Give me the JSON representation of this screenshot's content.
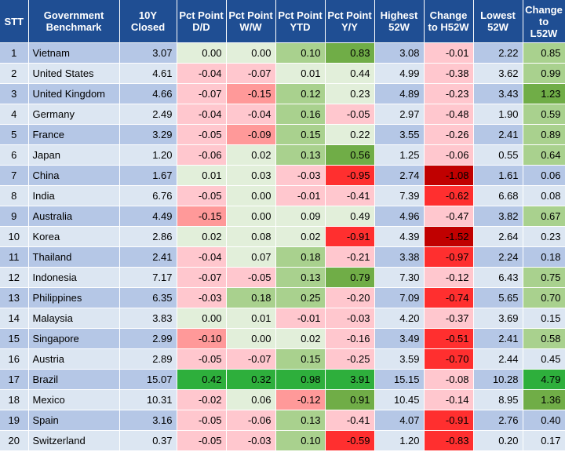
{
  "columns": [
    "STT",
    "Government Benchmark",
    "10Y Closed",
    "Pct Point D/D",
    "Pct Point W/W",
    "Pct Point YTD",
    "Pct Point Y/Y",
    "Highest 52W",
    "Change to H52W",
    "Lowest 52W",
    "Change to L52W"
  ],
  "rows": [
    {
      "stt": "1",
      "name": "Vietnam",
      "closed": "3.07",
      "dd": "0.00",
      "ww": "0.00",
      "ytd": "0.10",
      "yy": "0.83",
      "h52": "3.08",
      "ch52": "-0.01",
      "l52": "2.22",
      "cl52": "0.85"
    },
    {
      "stt": "2",
      "name": "United States",
      "closed": "4.61",
      "dd": "-0.04",
      "ww": "-0.07",
      "ytd": "0.01",
      "yy": "0.44",
      "h52": "4.99",
      "ch52": "-0.38",
      "l52": "3.62",
      "cl52": "0.99"
    },
    {
      "stt": "3",
      "name": "United Kingdom",
      "closed": "4.66",
      "dd": "-0.07",
      "ww": "-0.15",
      "ytd": "0.12",
      "yy": "0.23",
      "h52": "4.89",
      "ch52": "-0.23",
      "l52": "3.43",
      "cl52": "1.23"
    },
    {
      "stt": "4",
      "name": "Germany",
      "closed": "2.49",
      "dd": "-0.04",
      "ww": "-0.04",
      "ytd": "0.16",
      "yy": "-0.05",
      "h52": "2.97",
      "ch52": "-0.48",
      "l52": "1.90",
      "cl52": "0.59"
    },
    {
      "stt": "5",
      "name": "France",
      "closed": "3.29",
      "dd": "-0.05",
      "ww": "-0.09",
      "ytd": "0.15",
      "yy": "0.22",
      "h52": "3.55",
      "ch52": "-0.26",
      "l52": "2.41",
      "cl52": "0.89"
    },
    {
      "stt": "6",
      "name": "Japan",
      "closed": "1.20",
      "dd": "-0.06",
      "ww": "0.02",
      "ytd": "0.13",
      "yy": "0.56",
      "h52": "1.25",
      "ch52": "-0.06",
      "l52": "0.55",
      "cl52": "0.64"
    },
    {
      "stt": "7",
      "name": "China",
      "closed": "1.67",
      "dd": "0.01",
      "ww": "0.03",
      "ytd": "-0.03",
      "yy": "-0.95",
      "h52": "2.74",
      "ch52": "-1.08",
      "l52": "1.61",
      "cl52": "0.06"
    },
    {
      "stt": "8",
      "name": "India",
      "closed": "6.76",
      "dd": "-0.05",
      "ww": "0.00",
      "ytd": "-0.01",
      "yy": "-0.41",
      "h52": "7.39",
      "ch52": "-0.62",
      "l52": "6.68",
      "cl52": "0.08"
    },
    {
      "stt": "9",
      "name": "Australia",
      "closed": "4.49",
      "dd": "-0.15",
      "ww": "0.00",
      "ytd": "0.09",
      "yy": "0.49",
      "h52": "4.96",
      "ch52": "-0.47",
      "l52": "3.82",
      "cl52": "0.67"
    },
    {
      "stt": "10",
      "name": "Korea",
      "closed": "2.86",
      "dd": "0.02",
      "ww": "0.08",
      "ytd": "0.02",
      "yy": "-0.91",
      "h52": "4.39",
      "ch52": "-1.52",
      "l52": "2.64",
      "cl52": "0.23"
    },
    {
      "stt": "11",
      "name": "Thailand",
      "closed": "2.41",
      "dd": "-0.04",
      "ww": "0.07",
      "ytd": "0.18",
      "yy": "-0.21",
      "h52": "3.38",
      "ch52": "-0.97",
      "l52": "2.24",
      "cl52": "0.18"
    },
    {
      "stt": "12",
      "name": "Indonesia",
      "closed": "7.17",
      "dd": "-0.07",
      "ww": "-0.05",
      "ytd": "0.13",
      "yy": "0.79",
      "h52": "7.30",
      "ch52": "-0.12",
      "l52": "6.43",
      "cl52": "0.75"
    },
    {
      "stt": "13",
      "name": "Philippines",
      "closed": "6.35",
      "dd": "-0.03",
      "ww": "0.18",
      "ytd": "0.25",
      "yy": "-0.20",
      "h52": "7.09",
      "ch52": "-0.74",
      "l52": "5.65",
      "cl52": "0.70"
    },
    {
      "stt": "14",
      "name": "Malaysia",
      "closed": "3.83",
      "dd": "0.00",
      "ww": "0.01",
      "ytd": "-0.01",
      "yy": "-0.03",
      "h52": "4.20",
      "ch52": "-0.37",
      "l52": "3.69",
      "cl52": "0.15"
    },
    {
      "stt": "15",
      "name": "Singapore",
      "closed": "2.99",
      "dd": "-0.10",
      "ww": "0.00",
      "ytd": "0.02",
      "yy": "-0.16",
      "h52": "3.49",
      "ch52": "-0.51",
      "l52": "2.41",
      "cl52": "0.58"
    },
    {
      "stt": "16",
      "name": "Austria",
      "closed": "2.89",
      "dd": "-0.05",
      "ww": "-0.07",
      "ytd": "0.15",
      "yy": "-0.25",
      "h52": "3.59",
      "ch52": "-0.70",
      "l52": "2.44",
      "cl52": "0.45"
    },
    {
      "stt": "17",
      "name": "Brazil",
      "closed": "15.07",
      "dd": "0.42",
      "ww": "0.32",
      "ytd": "0.98",
      "yy": "3.91",
      "h52": "15.15",
      "ch52": "-0.08",
      "l52": "10.28",
      "cl52": "4.79"
    },
    {
      "stt": "18",
      "name": "Mexico",
      "closed": "10.31",
      "dd": "-0.02",
      "ww": "0.06",
      "ytd": "-0.12",
      "yy": "0.91",
      "h52": "10.45",
      "ch52": "-0.14",
      "l52": "8.95",
      "cl52": "1.36"
    },
    {
      "stt": "19",
      "name": "Spain",
      "closed": "3.16",
      "dd": "-0.05",
      "ww": "-0.06",
      "ytd": "0.13",
      "yy": "-0.41",
      "h52": "4.07",
      "ch52": "-0.91",
      "l52": "2.76",
      "cl52": "0.40"
    },
    {
      "stt": "20",
      "name": "Switzerland",
      "closed": "0.37",
      "dd": "-0.05",
      "ww": "-0.03",
      "ytd": "0.10",
      "yy": "-0.59",
      "h52": "1.20",
      "ch52": "-0.83",
      "l52": "0.20",
      "cl52": "0.17"
    }
  ],
  "colors": {
    "header_bg": "#1f4e93",
    "row_odd": "#b5c7e6",
    "row_even": "#dce6f2",
    "positive_light": "#e2efda",
    "positive_mid": "#a9d18e",
    "positive_strong": "#70ad47",
    "positive_max": "#2eaf3c",
    "negative_light": "#ffc7ce",
    "negative_mid": "#ff9999",
    "negative_strong": "#ff2f2f",
    "negative_max": "#c00000"
  }
}
